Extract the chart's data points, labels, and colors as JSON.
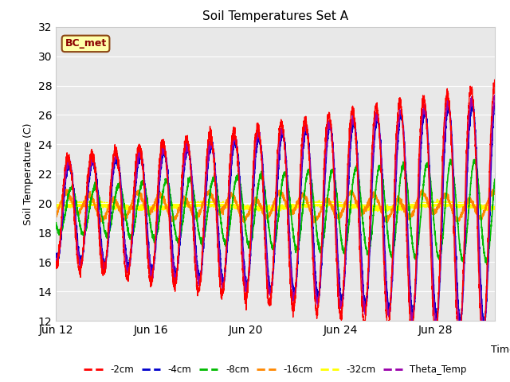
{
  "title": "Soil Temperatures Set A",
  "xlabel": "Time",
  "ylabel": "Soil Temperature (C)",
  "ylim": [
    12,
    32
  ],
  "yticks": [
    12,
    14,
    16,
    18,
    20,
    22,
    24,
    26,
    28,
    30,
    32
  ],
  "xlim_days": [
    0,
    18.5
  ],
  "xtick_labels": [
    "Jun 12",
    "Jun 16",
    "Jun 20",
    "Jun 24",
    "Jun 28"
  ],
  "xtick_positions": [
    0,
    4,
    8,
    12,
    16
  ],
  "annotation_text": "BC_met",
  "background_color": "#e8e8e8",
  "colors": {
    "2cm": "#ff0000",
    "4cm": "#0000cc",
    "8cm": "#00bb00",
    "16cm": "#ff8800",
    "32cm": "#ffff00",
    "theta": "#9900aa"
  },
  "legend_labels": [
    "-2cm",
    "-4cm",
    "-8cm",
    "-16cm",
    "-32cm",
    "Theta_Temp"
  ]
}
